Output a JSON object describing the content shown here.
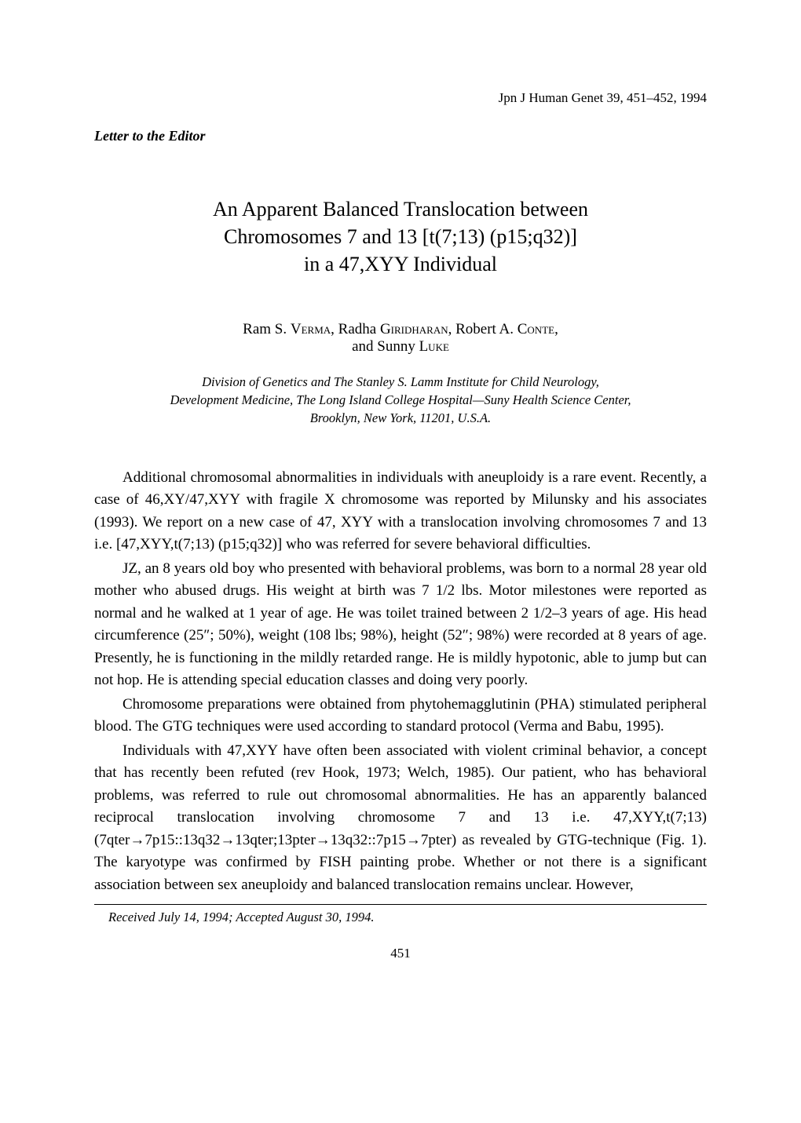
{
  "journal_ref": "Jpn J Human Genet 39, 451–452, 1994",
  "letter_type": "Letter to the Editor",
  "title_line1": "An Apparent Balanced Translocation between",
  "title_line2": "Chromosomes 7 and 13 [t(7;13) (p15;q32)]",
  "title_line3": "in a 47,XYY Individual",
  "authors_prefix1": "Ram S. ",
  "authors_sc1": "Verma",
  "authors_mid1": ", Radha ",
  "authors_sc2": "Giridharan",
  "authors_mid2": ", Robert A. ",
  "authors_sc3": "Conte",
  "authors_mid3": ",",
  "authors_line2_prefix": "and Sunny ",
  "authors_sc4": "Luke",
  "affiliation_line1": "Division of Genetics and The Stanley S. Lamm Institute for Child Neurology,",
  "affiliation_line2": "Development Medicine, The Long Island College Hospital—Suny Health Science Center,",
  "affiliation_line3": "Brooklyn, New York, 11201, U.S.A.",
  "para1": "Additional chromosomal abnormalities in individuals with aneuploidy is a rare event. Recently, a case of 46,XY/47,XYY with fragile X chromosome was reported by Milunsky and his associates (1993). We report on a new case of 47, XYY with a translocation involving chromosomes 7 and 13 i.e. [47,XYY,t(7;13) (p15;q32)] who was referred for severe behavioral difficulties.",
  "para2": "JZ, an 8 years old boy who presented with behavioral problems, was born to a normal 28 year old mother who abused drugs. His weight at birth was 7 1/2 lbs. Motor milestones were reported as normal and he walked at 1 year of age. He was toilet trained between 2 1/2–3 years of age. His head circumference (25″; 50%), weight (108 lbs; 98%), height (52″; 98%) were recorded at 8 years of age. Presently, he is functioning in the mildly retarded range. He is mildly hypotonic, able to jump but can not hop. He is attending special education classes and doing very poorly.",
  "para3": "Chromosome preparations were obtained from phytohemagglutinin (PHA) stimulated peripheral blood. The GTG techniques were used according to standard protocol (Verma and Babu, 1995).",
  "para4": "Individuals with 47,XYY have often been associated with violent criminal behavior, a concept that has recently been refuted (rev Hook, 1973; Welch, 1985). Our patient, who has behavioral problems, was referred to rule out chromosomal abnormalities. He has an apparently balanced reciprocal translocation involving chromosome 7 and 13 i.e. 47,XYY,t(7;13)(7qter→7p15::13q32→13qter;13pter→13q32::7p15→7pter) as revealed by GTG-technique (Fig. 1). The karyotype was confirmed by FISH painting probe. Whether or not there is a significant association between sex aneuploidy and balanced translocation remains unclear. However,",
  "received": "Received July 14, 1994; Accepted August 30, 1994.",
  "page_number": "451"
}
